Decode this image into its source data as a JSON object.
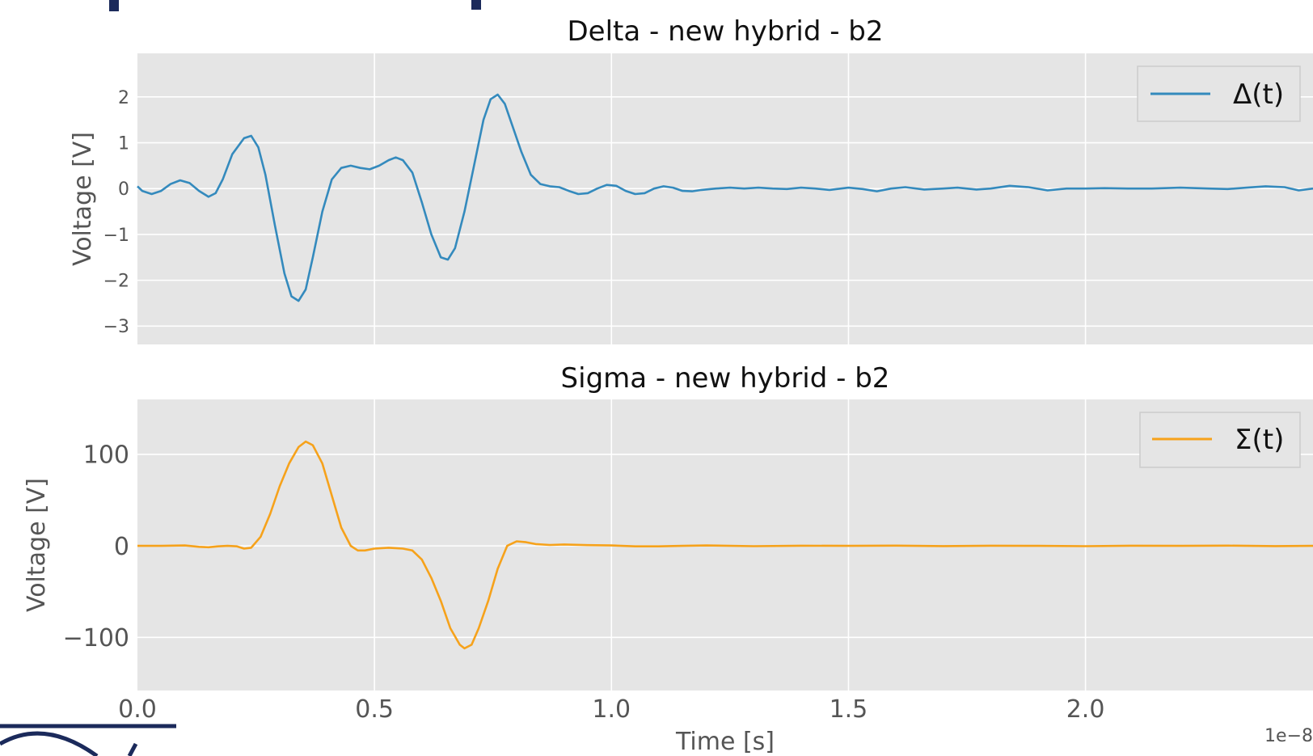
{
  "chart_data": [
    {
      "type": "line",
      "title": "Delta - new hybrid - b2",
      "ylabel": "Voltage [V]",
      "xlim": [
        0.0,
        2.48e-08
      ],
      "ylim": [
        -3.4,
        2.95
      ],
      "yticks": [
        2,
        1,
        0,
        -1,
        -2,
        -3
      ],
      "ytick_labels": [
        "2",
        "1",
        "0",
        "−1",
        "−2",
        "−3"
      ],
      "grid": true,
      "legend_position": "top-right",
      "color": "#348abd",
      "series": [
        {
          "name": "Δ(t)",
          "points": [
            [
              0,
              0.05
            ],
            [
              0.01,
              -0.05
            ],
            [
              0.03,
              -0.12
            ],
            [
              0.05,
              -0.05
            ],
            [
              0.07,
              0.1
            ],
            [
              0.09,
              0.18
            ],
            [
              0.11,
              0.12
            ],
            [
              0.13,
              -0.05
            ],
            [
              0.15,
              -0.18
            ],
            [
              0.165,
              -0.1
            ],
            [
              0.18,
              0.2
            ],
            [
              0.2,
              0.75
            ],
            [
              0.225,
              1.1
            ],
            [
              0.24,
              1.15
            ],
            [
              0.255,
              0.9
            ],
            [
              0.27,
              0.3
            ],
            [
              0.29,
              -0.8
            ],
            [
              0.31,
              -1.85
            ],
            [
              0.325,
              -2.35
            ],
            [
              0.34,
              -2.45
            ],
            [
              0.355,
              -2.2
            ],
            [
              0.37,
              -1.5
            ],
            [
              0.39,
              -0.5
            ],
            [
              0.41,
              0.2
            ],
            [
              0.43,
              0.45
            ],
            [
              0.45,
              0.5
            ],
            [
              0.47,
              0.45
            ],
            [
              0.49,
              0.42
            ],
            [
              0.51,
              0.5
            ],
            [
              0.53,
              0.62
            ],
            [
              0.545,
              0.68
            ],
            [
              0.56,
              0.62
            ],
            [
              0.58,
              0.35
            ],
            [
              0.6,
              -0.3
            ],
            [
              0.62,
              -1.0
            ],
            [
              0.64,
              -1.5
            ],
            [
              0.655,
              -1.55
            ],
            [
              0.67,
              -1.3
            ],
            [
              0.69,
              -0.5
            ],
            [
              0.71,
              0.5
            ],
            [
              0.73,
              1.5
            ],
            [
              0.745,
              1.95
            ],
            [
              0.76,
              2.05
            ],
            [
              0.775,
              1.85
            ],
            [
              0.79,
              1.4
            ],
            [
              0.81,
              0.8
            ],
            [
              0.83,
              0.3
            ],
            [
              0.85,
              0.1
            ],
            [
              0.87,
              0.05
            ],
            [
              0.89,
              0.03
            ],
            [
              0.91,
              -0.05
            ],
            [
              0.93,
              -0.12
            ],
            [
              0.95,
              -0.1
            ],
            [
              0.97,
              0.0
            ],
            [
              0.99,
              0.08
            ],
            [
              1.01,
              0.06
            ],
            [
              1.03,
              -0.05
            ],
            [
              1.05,
              -0.12
            ],
            [
              1.07,
              -0.1
            ],
            [
              1.09,
              0.0
            ],
            [
              1.11,
              0.05
            ],
            [
              1.13,
              0.02
            ],
            [
              1.15,
              -0.05
            ],
            [
              1.17,
              -0.06
            ],
            [
              1.19,
              -0.03
            ],
            [
              1.22,
              0.0
            ],
            [
              1.25,
              0.02
            ],
            [
              1.28,
              0.0
            ],
            [
              1.31,
              0.02
            ],
            [
              1.34,
              0.0
            ],
            [
              1.37,
              -0.01
            ],
            [
              1.4,
              0.02
            ],
            [
              1.43,
              0.0
            ],
            [
              1.46,
              -0.03
            ],
            [
              1.5,
              0.02
            ],
            [
              1.53,
              -0.01
            ],
            [
              1.56,
              -0.06
            ],
            [
              1.59,
              0.0
            ],
            [
              1.62,
              0.03
            ],
            [
              1.66,
              -0.02
            ],
            [
              1.7,
              0.0
            ],
            [
              1.73,
              0.02
            ],
            [
              1.77,
              -0.02
            ],
            [
              1.8,
              0.0
            ],
            [
              1.84,
              0.06
            ],
            [
              1.88,
              0.03
            ],
            [
              1.92,
              -0.04
            ],
            [
              1.96,
              0.0
            ],
            [
              2.0,
              0.0
            ],
            [
              2.04,
              0.01
            ],
            [
              2.09,
              0.0
            ],
            [
              2.14,
              0.0
            ],
            [
              2.2,
              0.02
            ],
            [
              2.26,
              0.0
            ],
            [
              2.3,
              -0.01
            ],
            [
              2.34,
              0.02
            ],
            [
              2.38,
              0.05
            ],
            [
              2.42,
              0.03
            ],
            [
              2.45,
              -0.04
            ],
            [
              2.48,
              0.0
            ]
          ]
        }
      ]
    },
    {
      "type": "line",
      "title": "Sigma - new hybrid - b2",
      "xlabel": "Time [s]",
      "ylabel": "Voltage [V]",
      "xlim": [
        0.0,
        2.48e-08
      ],
      "ylim": [
        -158,
        160
      ],
      "xticks": [
        0.0,
        0.5,
        1.0,
        1.5,
        2.0
      ],
      "xtick_labels": [
        "0.0",
        "0.5",
        "1.0",
        "1.5",
        "2.0"
      ],
      "x_offset_label": "1e−8",
      "yticks": [
        100,
        0,
        -100
      ],
      "ytick_labels": [
        "100",
        "0",
        "−100"
      ],
      "grid": true,
      "legend_position": "top-right",
      "color": "#f6a21b",
      "series": [
        {
          "name": "Σ(t)",
          "points": [
            [
              0,
              0
            ],
            [
              0.05,
              0
            ],
            [
              0.1,
              0.5
            ],
            [
              0.13,
              -1
            ],
            [
              0.15,
              -1.5
            ],
            [
              0.17,
              -0.5
            ],
            [
              0.19,
              0
            ],
            [
              0.21,
              -0.5
            ],
            [
              0.225,
              -3
            ],
            [
              0.24,
              -2
            ],
            [
              0.26,
              10
            ],
            [
              0.28,
              35
            ],
            [
              0.3,
              65
            ],
            [
              0.32,
              90
            ],
            [
              0.34,
              108
            ],
            [
              0.355,
              114
            ],
            [
              0.37,
              110
            ],
            [
              0.39,
              90
            ],
            [
              0.41,
              55
            ],
            [
              0.43,
              20
            ],
            [
              0.45,
              0
            ],
            [
              0.465,
              -5
            ],
            [
              0.48,
              -5
            ],
            [
              0.5,
              -3
            ],
            [
              0.53,
              -2
            ],
            [
              0.56,
              -3
            ],
            [
              0.58,
              -5
            ],
            [
              0.6,
              -15
            ],
            [
              0.62,
              -35
            ],
            [
              0.64,
              -60
            ],
            [
              0.66,
              -90
            ],
            [
              0.68,
              -108
            ],
            [
              0.69,
              -112
            ],
            [
              0.705,
              -108
            ],
            [
              0.72,
              -90
            ],
            [
              0.74,
              -60
            ],
            [
              0.76,
              -25
            ],
            [
              0.78,
              0
            ],
            [
              0.8,
              5
            ],
            [
              0.82,
              4
            ],
            [
              0.84,
              2
            ],
            [
              0.87,
              1
            ],
            [
              0.9,
              1.5
            ],
            [
              0.95,
              0.8
            ],
            [
              1.0,
              0.5
            ],
            [
              1.05,
              -0.5
            ],
            [
              1.1,
              -0.5
            ],
            [
              1.15,
              0
            ],
            [
              1.2,
              0.5
            ],
            [
              1.3,
              -0.3
            ],
            [
              1.4,
              0.2
            ],
            [
              1.5,
              0
            ],
            [
              1.6,
              0.3
            ],
            [
              1.7,
              -0.2
            ],
            [
              1.8,
              0.2
            ],
            [
              1.9,
              0
            ],
            [
              2.0,
              -0.3
            ],
            [
              2.1,
              0.2
            ],
            [
              2.2,
              0
            ],
            [
              2.3,
              0.3
            ],
            [
              2.4,
              -0.2
            ],
            [
              2.48,
              0
            ]
          ]
        }
      ]
    }
  ]
}
